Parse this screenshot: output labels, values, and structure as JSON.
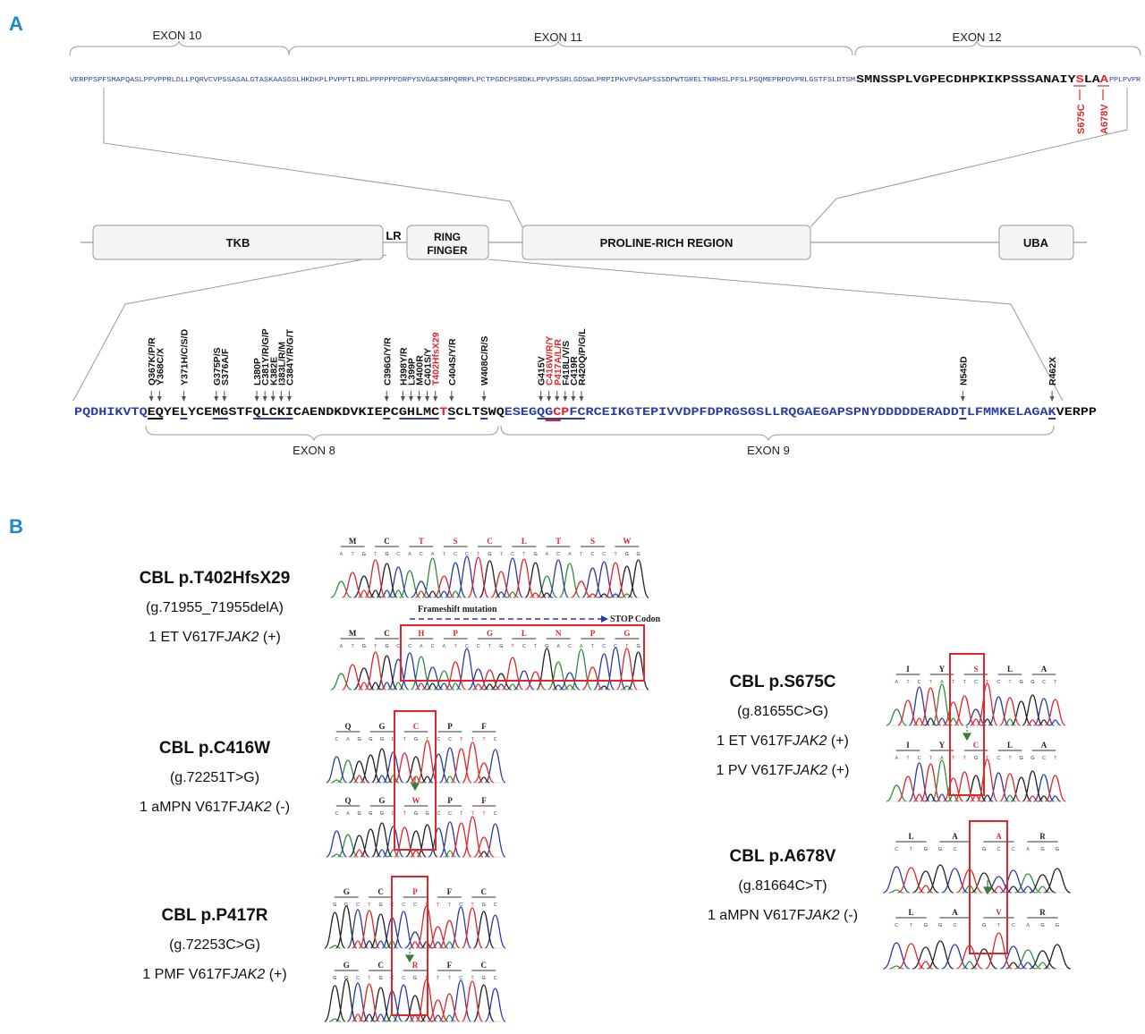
{
  "panels": {
    "a": "A",
    "b": "B"
  },
  "colors": {
    "blue": "#2a3ea3",
    "red": "#e0262b",
    "black": "#111111",
    "label_blue": "#1f88c8",
    "gray": "#9a9a9a"
  },
  "top_exons": [
    {
      "label": "EXON 10"
    },
    {
      "label": "EXON 11"
    },
    {
      "label": "EXON 12"
    }
  ],
  "top_sequence": {
    "blue": "VERPPSPFSMAPQASLPPVPPRLDLLPQRVCVPSSASALGTASKAASGSLHKDKPLPVPPTLRDLPPPPPPDRPYSVGAESRPQRRPLPCTPGDCPSRDKLPPVPSSRLGDSWLPRPIPKVPVSAPSSSDPWTGRELTNRHSLPFSLPSQMEPRPDVPRLGSTFSLDTSM",
    "black_pre": "SMNSSPLVGPECDHPKIKPSSSANAIY",
    "red1": "S",
    "black_mid": "LA",
    "red2": "A",
    "blue_tail": "PPLPVPR"
  },
  "top_mutations": [
    {
      "label": "S675C"
    },
    {
      "label": "A678V"
    }
  ],
  "domains": [
    {
      "label": "TKB"
    },
    {
      "label": "LR"
    },
    {
      "label": "RING\nFINGER"
    },
    {
      "label": "PROLINE-RICH REGION"
    },
    {
      "label": "UBA"
    }
  ],
  "bottom_sequence": {
    "blue_a": "PQDHIKVTQ",
    "black_b": "EQYELYCEMGSTFQLCKICAENDKDVKIEPCGHLMC",
    "red_c": "T",
    "black_d": "SCLTSWQ",
    "blue_e": "ESEGQG",
    "red_f": "CP",
    "blue_g": "FCRCEIKGTEPIVVDPFDPRGSGSLLRQGAEGAPSPNYDDDDDERADDTLFMMKELAGAK",
    "black_h": "VERPP"
  },
  "bottom_mutations": [
    {
      "label": "Q367K/P/R"
    },
    {
      "label": "Y368C/X"
    },
    {
      "label": "Y371H/C/S/D"
    },
    {
      "label": "G375P/S"
    },
    {
      "label": "S376A/F"
    },
    {
      "label": "L380P"
    },
    {
      "label": "C381Y/R/G/P"
    },
    {
      "label": "K382E"
    },
    {
      "label": "I383L/R/M"
    },
    {
      "label": "C384Y/R/G/T"
    },
    {
      "label": "C396G/Y/R"
    },
    {
      "label": "H398Y/R"
    },
    {
      "label": "L399P"
    },
    {
      "label": "M400R"
    },
    {
      "label": "C401S/Y"
    },
    {
      "label": "T402HfsX29"
    },
    {
      "label": "C404S/Y/R"
    },
    {
      "label": "W408C/R/S"
    },
    {
      "label": "G415V"
    },
    {
      "label": "C416W/R/Y"
    },
    {
      "label": "P417A/L/R"
    },
    {
      "label": "F418L/V/S"
    },
    {
      "label": "C419R"
    },
    {
      "label": "R420Q/P/G/L"
    },
    {
      "label": "N545D"
    },
    {
      "label": "R462X"
    }
  ],
  "bottom_exons": [
    {
      "label": "EXON 8"
    },
    {
      "label": "EXON 9"
    }
  ],
  "cases": [
    {
      "name": "CBL p.T402HfsX29",
      "genomic": "(g.71955_71955delA)",
      "patients": [
        {
          "pre": "1 ET V617F",
          "gene": "JAK2",
          "post": " (+)"
        }
      ]
    },
    {
      "name": "CBL p.C416W",
      "genomic": "(g.72251T>G)",
      "patients": [
        {
          "pre": "1 aMPN V617F",
          "gene": "JAK2",
          "post": " (-)"
        }
      ]
    },
    {
      "name": "CBL p.P417R",
      "genomic": "(g.72253C>G)",
      "patients": [
        {
          "pre": "1 PMF V617F",
          "gene": "JAK2",
          "post": " (+)"
        }
      ]
    },
    {
      "name": "CBL p.S675C",
      "genomic": "(g.81655C>G)",
      "patients": [
        {
          "pre": "1 ET V617F",
          "gene": "JAK2",
          "post": " (+)"
        },
        {
          "pre": "1 PV V617F",
          "gene": "JAK2",
          "post": " (+)"
        }
      ]
    },
    {
      "name": "CBL p.A678V",
      "genomic": "(g.81664C>T)",
      "patients": [
        {
          "pre": "1 aMPN V617F",
          "gene": "JAK2",
          "post": " (-)"
        }
      ]
    }
  ],
  "chromatograms": [
    {
      "aa": [
        "M",
        "C",
        "T",
        "S",
        "C",
        "L",
        "T",
        "S",
        "W"
      ],
      "bases": "ATGTGCACATCCTGTCTGACATCCTGG"
    },
    {
      "aa": [
        "M",
        "C",
        "H",
        "P",
        "G",
        "L",
        "N",
        "P",
        "G"
      ],
      "bases": "ATGTGCCACATCCTGTCTGACATCCTG"
    },
    {
      "aa": [
        "Q",
        "G",
        "C",
        "P",
        "F"
      ],
      "bases": "CAGGGCTGTCCTTTC"
    },
    {
      "aa": [
        "Q",
        "G",
        "W",
        "P",
        "F"
      ],
      "bases": "CAGGGCTGGCCTTTC"
    },
    {
      "aa": [
        "G",
        "C",
        "P",
        "F",
        "C"
      ],
      "bases": "GGCTGCCCTTTCTGC"
    },
    {
      "aa": [
        "G",
        "C",
        "R",
        "F",
        "C"
      ],
      "bases": "GGCTGCCGTTTCTGC"
    },
    {
      "aa": [
        "I",
        "Y",
        "S",
        "L",
        "A"
      ],
      "bases": "ATCTATTCTCTGGCT"
    },
    {
      "aa": [
        "I",
        "Y",
        "C",
        "L",
        "A"
      ],
      "bases": "ATCTATTGTCTGGCT"
    },
    {
      "aa": [
        "L",
        "A",
        "A",
        "R"
      ],
      "bases": "CTGGCTGCCAGG"
    },
    {
      "aa": [
        "L",
        "A",
        "V",
        "R"
      ],
      "bases": "CTGGCTGTCAGG"
    }
  ],
  "frameshift": {
    "label": "Frameshift mutation",
    "stop": "STOP Codon"
  }
}
